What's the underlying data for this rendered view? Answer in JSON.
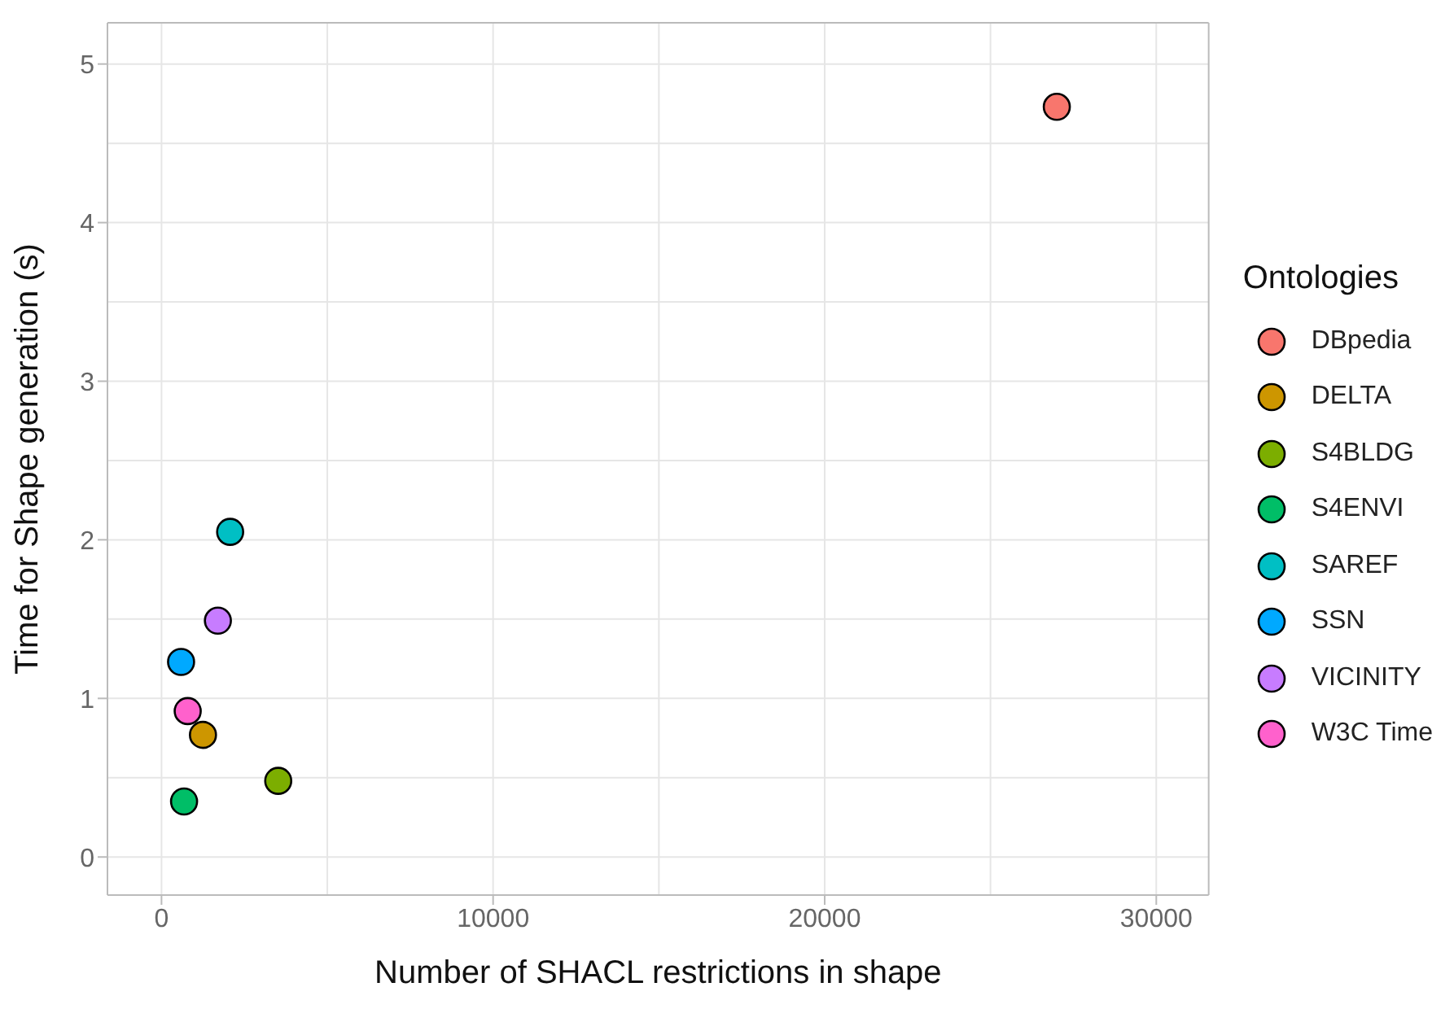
{
  "chart_data": {
    "type": "scatter",
    "xlabel": "Number of SHACL restrictions in shape",
    "ylabel": "Time for Shape generation (s)",
    "legend_title": "Ontologies",
    "xlim": [
      -1630,
      31580
    ],
    "xticks": [
      0,
      10000,
      20000,
      30000
    ],
    "ylim": [
      -0.24,
      5.26
    ],
    "yticks": [
      0,
      1,
      2,
      3,
      4,
      5
    ],
    "grid": true,
    "legend": "right",
    "marker": "circle",
    "series": [
      {
        "name": "DBpedia",
        "color": "#f8766d",
        "x": [
          27000
        ],
        "values": [
          4.73
        ]
      },
      {
        "name": "DELTA",
        "color": "#cd9600",
        "x": [
          1250
        ],
        "values": [
          0.77
        ]
      },
      {
        "name": "S4BLDG",
        "color": "#7cae00",
        "x": [
          3520
        ],
        "values": [
          0.48
        ]
      },
      {
        "name": "S4ENVI",
        "color": "#00be67",
        "x": [
          680
        ],
        "values": [
          0.35
        ]
      },
      {
        "name": "SAREF",
        "color": "#00bfc4",
        "x": [
          2070
        ],
        "values": [
          2.05
        ]
      },
      {
        "name": "SSN",
        "color": "#00a9ff",
        "x": [
          590
        ],
        "values": [
          1.23
        ]
      },
      {
        "name": "VICINITY",
        "color": "#c77cff",
        "x": [
          1700
        ],
        "values": [
          1.49
        ]
      },
      {
        "name": "W3C Time",
        "color": "#ff61cc",
        "x": [
          790
        ],
        "values": [
          0.92
        ]
      }
    ]
  }
}
